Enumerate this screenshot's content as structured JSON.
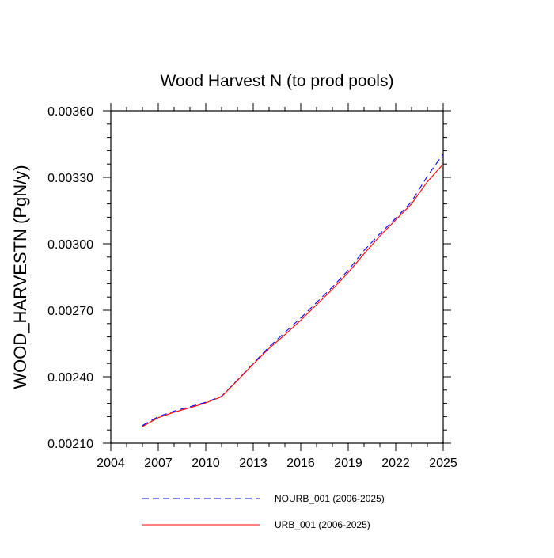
{
  "chart_data": {
    "type": "line",
    "title": "Wood Harvest N (to prod pools)",
    "xlabel": "",
    "ylabel": "WOOD_HARVESTN  (PgN/y)",
    "xlim": [
      2004,
      2025
    ],
    "ylim": [
      0.0021,
      0.0036
    ],
    "x_ticks": [
      2004,
      2007,
      2010,
      2013,
      2016,
      2019,
      2022,
      2025
    ],
    "x_tick_labels": [
      "2004",
      "2007",
      "2010",
      "2013",
      "2016",
      "2019",
      "2022",
      "2025"
    ],
    "y_ticks": [
      0.0021,
      0.0024,
      0.0027,
      0.003,
      0.0033,
      0.0036
    ],
    "y_tick_labels": [
      "0.00210",
      "0.00240",
      "0.00270",
      "0.00300",
      "0.00330",
      "0.00360"
    ],
    "grid": false,
    "legend_position": "bottom",
    "x": [
      2006,
      2007,
      2008,
      2009,
      2010,
      2011,
      2012,
      2013,
      2014,
      2015,
      2016,
      2017,
      2018,
      2019,
      2020,
      2021,
      2022,
      2023,
      2024,
      2025
    ],
    "series": [
      {
        "name": "NOURB_001 (2006-2025)",
        "color": "#0000ff",
        "dash": "dashed",
        "values": [
          0.00218,
          0.00222,
          0.002245,
          0.002265,
          0.002285,
          0.002312,
          0.002385,
          0.00246,
          0.002535,
          0.0026,
          0.002665,
          0.002735,
          0.002805,
          0.00288,
          0.00297,
          0.003045,
          0.003115,
          0.00319,
          0.003305,
          0.003405
        ]
      },
      {
        "name": "URB_001 (2006-2025)",
        "color": "#ff0000",
        "dash": "solid",
        "values": [
          0.002175,
          0.002215,
          0.00224,
          0.00226,
          0.002282,
          0.00231,
          0.002383,
          0.002457,
          0.002528,
          0.00259,
          0.002655,
          0.002725,
          0.002795,
          0.00287,
          0.002955,
          0.003035,
          0.003108,
          0.00318,
          0.00328,
          0.00336
        ]
      }
    ]
  }
}
